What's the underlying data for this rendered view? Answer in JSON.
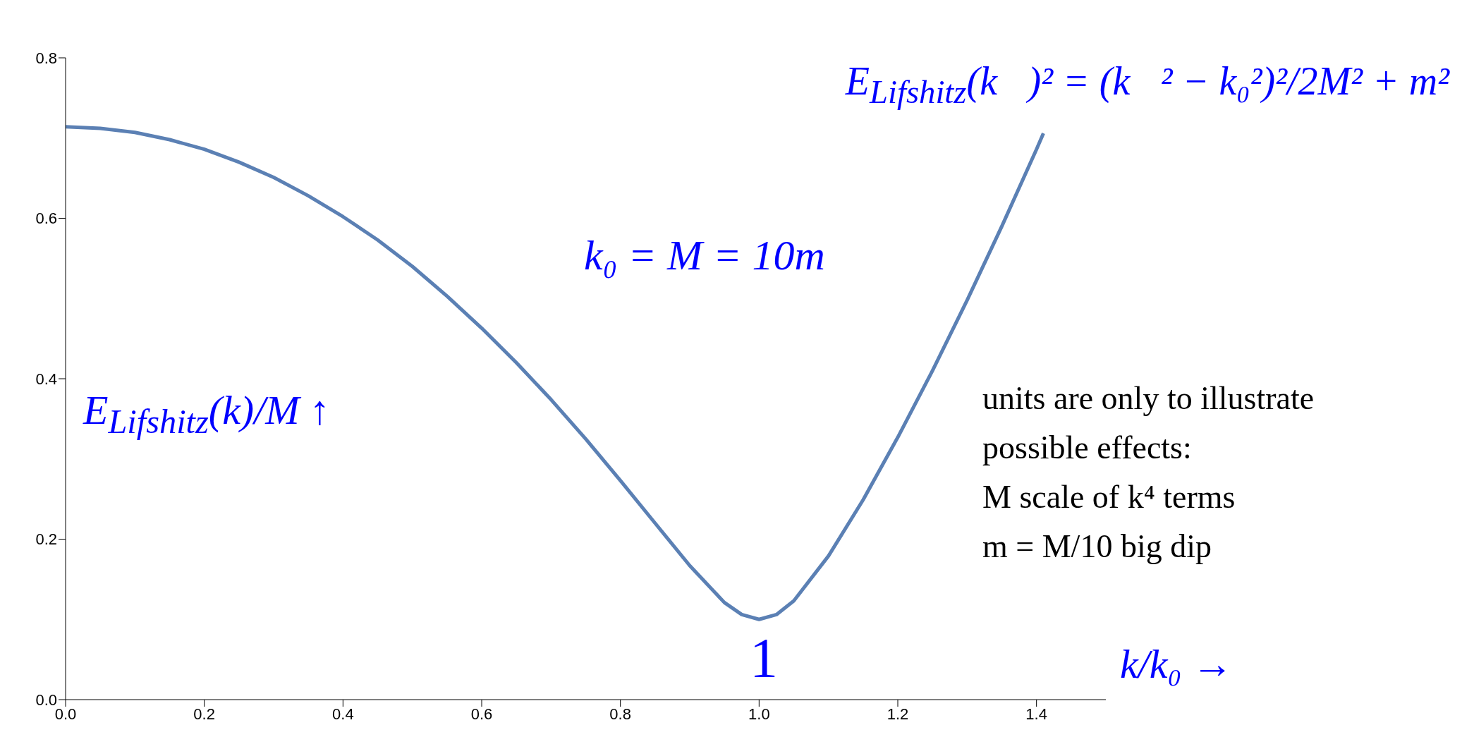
{
  "chart_data": {
    "type": "line",
    "xlabel": "k/k₀ →",
    "ylabel": "E$_{Lifshitz}$(k)/M ↑",
    "x": [
      0,
      0.05,
      0.1,
      0.15,
      0.2,
      0.25,
      0.3,
      0.35,
      0.4,
      0.45,
      0.5,
      0.55,
      0.6,
      0.65,
      0.7,
      0.75,
      0.8,
      0.85,
      0.9,
      0.95,
      0.975,
      1.0,
      1.025,
      1.05,
      1.1,
      1.15,
      1.2,
      1.25,
      1.3,
      1.35,
      1.4,
      1.41
    ],
    "series": [
      {
        "color": "#5b80b4",
        "values": [
          0.714,
          0.712,
          0.707,
          0.698,
          0.686,
          0.67,
          0.651,
          0.628,
          0.602,
          0.573,
          0.54,
          0.503,
          0.463,
          0.42,
          0.374,
          0.325,
          0.273,
          0.22,
          0.167,
          0.121,
          0.106,
          0.1,
          0.106,
          0.123,
          0.179,
          0.249,
          0.327,
          0.41,
          0.498,
          0.59,
          0.686,
          0.706
        ]
      }
    ],
    "xlim": [
      0,
      1.5
    ],
    "xticks": [
      {
        "value": 0,
        "label": "0.0"
      },
      {
        "value": 0.2,
        "label": "0.2"
      },
      {
        "value": 0.4,
        "label": "0.4"
      },
      {
        "value": 0.6,
        "label": "0.6"
      },
      {
        "value": 0.8,
        "label": "0.8"
      },
      {
        "value": 1,
        "label": "1.0"
      },
      {
        "value": 1.2,
        "label": "1.2"
      },
      {
        "value": 1.4,
        "label": "1.4"
      }
    ],
    "ylim": [
      0,
      0.8
    ],
    "yticks": [
      {
        "value": 0,
        "label": "0.0"
      },
      {
        "value": 0.2,
        "label": "0.2"
      },
      {
        "value": 0.4,
        "label": "0.4"
      },
      {
        "value": 0.6,
        "label": "0.6"
      },
      {
        "value": 0.8,
        "label": "0.8"
      }
    ],
    "marker": "none",
    "line_style": "solid",
    "annotations": [
      "E$_{Lifshitz}$(k⃗)² = (k⃗² − k₀²)²/2M² + m²",
      "k₀ = M = 10m",
      "units are only to illustrate",
      "possible effects:",
      "M scale of k⁴ terms",
      "m = M/10 big dip",
      "1"
    ]
  }
}
